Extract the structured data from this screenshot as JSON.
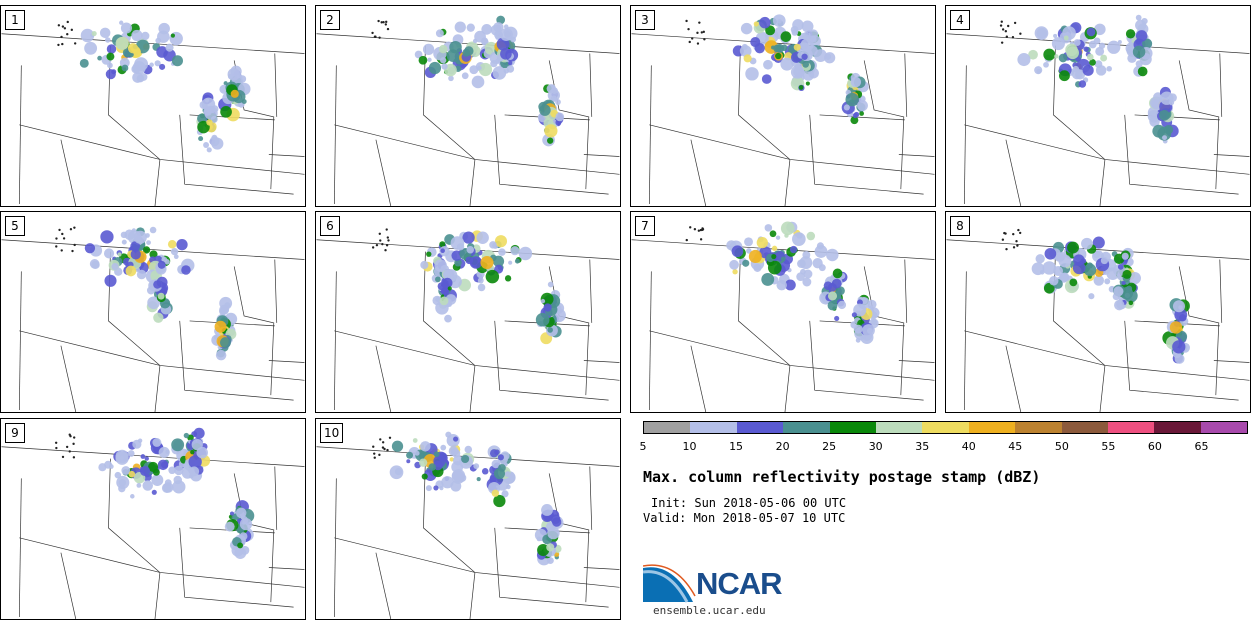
{
  "panels": [
    {
      "label": "1"
    },
    {
      "label": "2"
    },
    {
      "label": "3"
    },
    {
      "label": "4"
    },
    {
      "label": "5"
    },
    {
      "label": "6"
    },
    {
      "label": "7"
    },
    {
      "label": "8"
    },
    {
      "label": "9"
    },
    {
      "label": "10"
    }
  ],
  "colorbar": {
    "colors": [
      "#a0a0a0",
      "#b4bfe8",
      "#5a5ad2",
      "#4a9090",
      "#0a880a",
      "#bcdcbc",
      "#eedc60",
      "#eeb020",
      "#bc8230",
      "#8c5a3c",
      "#ee5080",
      "#6a1838",
      "#a84aac"
    ],
    "ticks": [
      "5",
      "10",
      "15",
      "20",
      "25",
      "30",
      "35",
      "40",
      "45",
      "50",
      "55",
      "60",
      "65"
    ]
  },
  "title": "Max. column reflectivity postage stamp (dBZ)",
  "init": "Init: Sun 2018-05-06 00 UTC",
  "valid": "Valid: Mon 2018-05-07 10 UTC",
  "logo": {
    "text": "NCAR",
    "url": "ensemble.ucar.edu"
  }
}
